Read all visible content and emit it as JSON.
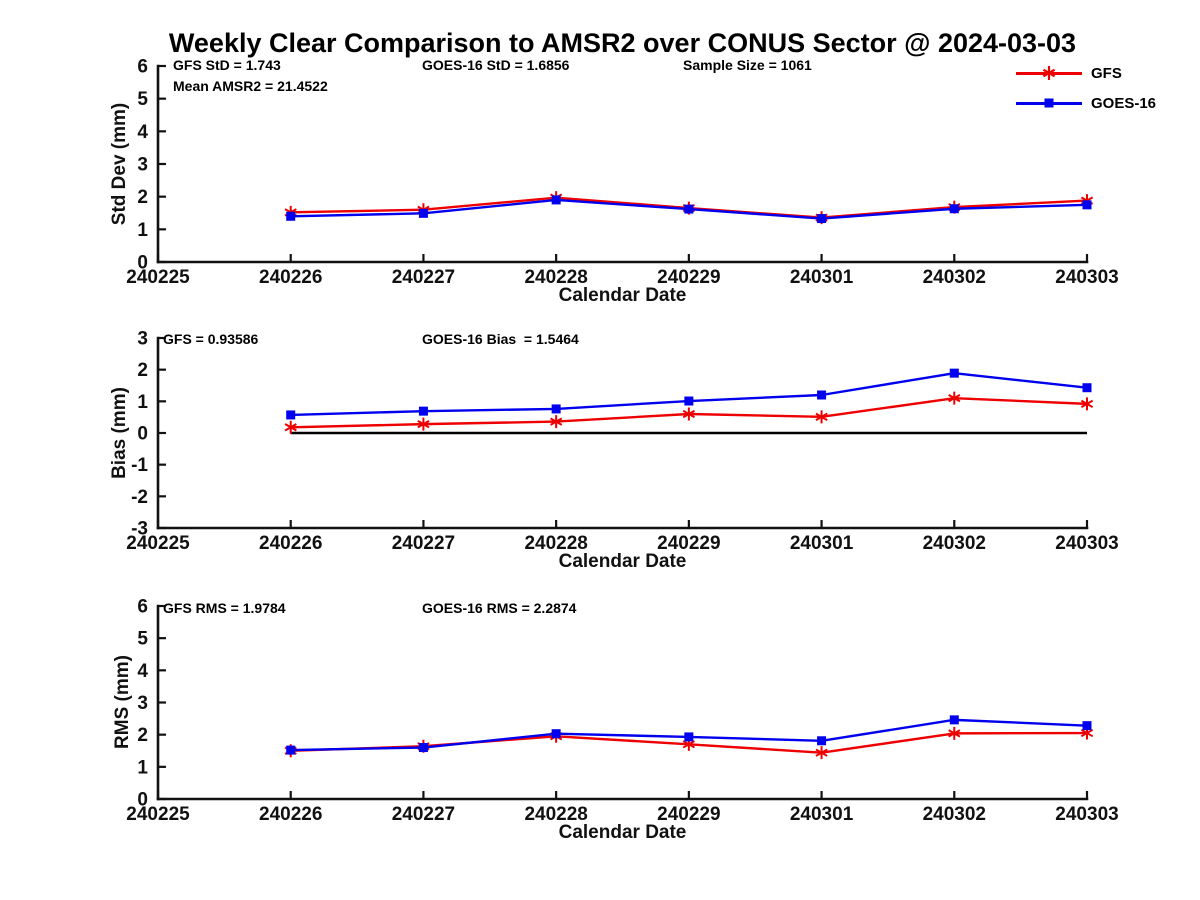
{
  "page": {
    "title": "Weekly Clear Comparison to AMSR2 over CONUS Sector @ 2024-03-03",
    "background": "#ffffff"
  },
  "colors": {
    "gfs": "#ee0000",
    "goes16": "#0000ee",
    "zero_line": "#000000",
    "axis": "#111111"
  },
  "legend": {
    "position": "top-right",
    "entries": [
      {
        "label": "GFS",
        "color": "#ee0000",
        "marker": "asterisk"
      },
      {
        "label": "GOES-16",
        "color": "#0000ee",
        "marker": "square"
      }
    ]
  },
  "chart_data": [
    {
      "id": "stddev",
      "type": "line",
      "ylabel": "Std Dev (mm)",
      "xlabel": "Calendar Date",
      "ylim": [
        0,
        6
      ],
      "yticks": [
        0,
        1,
        2,
        3,
        4,
        5,
        6
      ],
      "grid": false,
      "categories": [
        "240225",
        "240226",
        "240227",
        "240228",
        "240229",
        "240301",
        "240302",
        "240303"
      ],
      "x": [
        "240226",
        "240227",
        "240228",
        "240229",
        "240301",
        "240302",
        "240303"
      ],
      "series": [
        {
          "name": "GFS",
          "color": "#ee0000",
          "marker": "asterisk",
          "values": [
            1.52,
            1.6,
            1.97,
            1.65,
            1.36,
            1.68,
            1.88
          ]
        },
        {
          "name": "GOES-16",
          "color": "#0000ee",
          "marker": "square",
          "values": [
            1.4,
            1.49,
            1.9,
            1.62,
            1.33,
            1.63,
            1.75
          ]
        }
      ],
      "annotations": [
        {
          "text": "GFS StD = 1.743"
        },
        {
          "text": "Mean AMSR2 = 21.4522"
        },
        {
          "text": "GOES-16 StD = 1.6856"
        },
        {
          "text": "Sample Size = 1061"
        }
      ]
    },
    {
      "id": "bias",
      "type": "line",
      "ylabel": "Bias (mm)",
      "xlabel": "Calendar Date",
      "ylim": [
        -3,
        3
      ],
      "yticks": [
        -3,
        -2,
        -1,
        0,
        1,
        2,
        3
      ],
      "grid": false,
      "categories": [
        "240225",
        "240226",
        "240227",
        "240228",
        "240229",
        "240301",
        "240302",
        "240303"
      ],
      "x": [
        "240226",
        "240227",
        "240228",
        "240229",
        "240301",
        "240302",
        "240303"
      ],
      "series": [
        {
          "name": "GFS",
          "color": "#ee0000",
          "marker": "asterisk",
          "values": [
            0.18,
            0.28,
            0.36,
            0.6,
            0.51,
            1.1,
            0.92
          ]
        },
        {
          "name": "GOES-16",
          "color": "#0000ee",
          "marker": "square",
          "values": [
            0.57,
            0.69,
            0.76,
            1.01,
            1.2,
            1.89,
            1.43
          ]
        }
      ],
      "zero_line": {
        "value": 0,
        "from": "240226",
        "to": "240303",
        "color": "#000000"
      },
      "annotations": [
        {
          "text": "GFS = 0.93586"
        },
        {
          "text": "GOES-16 Bias  = 1.5464"
        }
      ]
    },
    {
      "id": "rms",
      "type": "line",
      "ylabel": "RMS (mm)",
      "xlabel": "Calendar Date",
      "ylim": [
        0,
        6
      ],
      "yticks": [
        0,
        1,
        2,
        3,
        4,
        5,
        6
      ],
      "grid": false,
      "categories": [
        "240225",
        "240226",
        "240227",
        "240228",
        "240229",
        "240301",
        "240302",
        "240303"
      ],
      "x": [
        "240226",
        "240227",
        "240228",
        "240229",
        "240301",
        "240302",
        "240303"
      ],
      "series": [
        {
          "name": "GFS",
          "color": "#ee0000",
          "marker": "asterisk",
          "values": [
            1.5,
            1.64,
            1.95,
            1.7,
            1.44,
            2.04,
            2.05
          ]
        },
        {
          "name": "GOES-16",
          "color": "#0000ee",
          "marker": "square",
          "values": [
            1.52,
            1.6,
            2.03,
            1.93,
            1.81,
            2.46,
            2.28
          ]
        }
      ],
      "annotations": [
        {
          "text": "GFS RMS = 1.9784"
        },
        {
          "text": "GOES-16 RMS = 2.2874"
        }
      ]
    }
  ]
}
